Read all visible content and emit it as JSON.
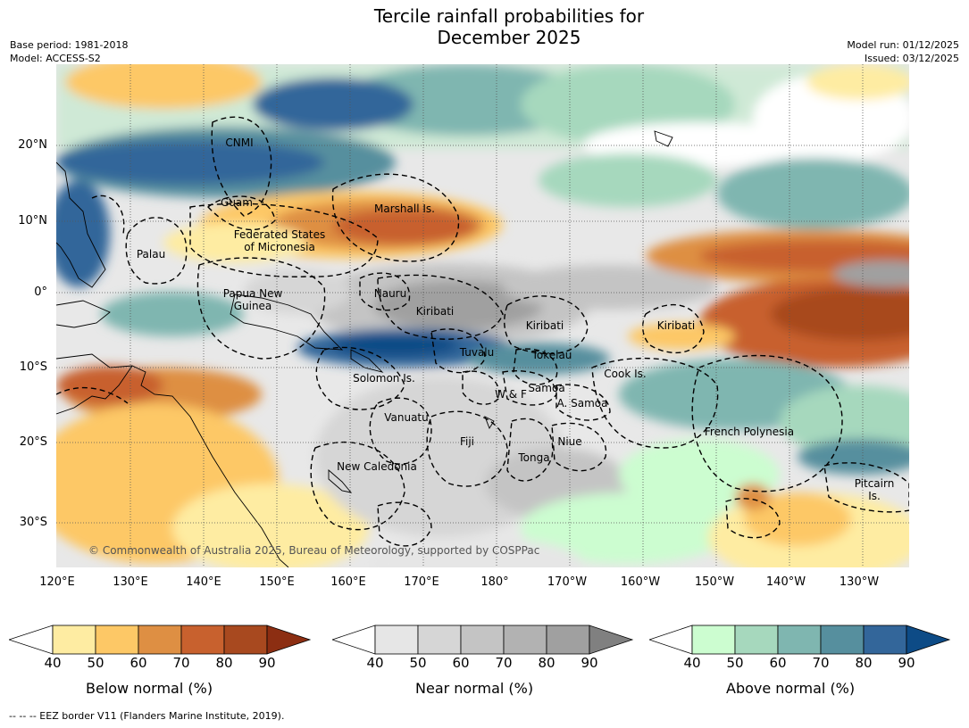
{
  "title_line1": "Tercile rainfall probabilities for",
  "title_line2": "December 2025",
  "meta": {
    "base_period": "Base period: 1981-2018",
    "model": "Model: ACCESS-S2",
    "model_run": "Model run: 01/12/2025",
    "issued": "Issued: 03/12/2025"
  },
  "lat_labels": [
    "20°N",
    "10°N",
    "0°",
    "10°S",
    "20°S",
    "30°S"
  ],
  "lon_labels": [
    "120°E",
    "130°E",
    "140°E",
    "150°E",
    "160°E",
    "170°E",
    "180°",
    "170°W",
    "160°W",
    "150°W",
    "140°W",
    "130°W"
  ],
  "regions": {
    "cnmi": "CNMI",
    "guam": "Guam",
    "palau": "Palau",
    "fsm_1": "Federated States",
    "fsm_2": "of Micronesia",
    "marshall": "Marshall Is.",
    "png_1": "Papua New",
    "png_2": "Guinea",
    "nauru": "Nauru",
    "kiribati_w": "Kiribati",
    "kiribati_c": "Kiribati",
    "kiribati_e": "Kiribati",
    "tuvalu": "Tuvalu",
    "tokelau": "Tokelau",
    "cook": "Cook Is.",
    "solomon": "Solomon Is.",
    "wf": "W & F",
    "samoa": "Samoa",
    "asamoa": "A. Samoa",
    "vanuatu": "Vanuatu",
    "fiji": "Fiji",
    "niue": "Niue",
    "tonga": "Tonga",
    "french_polynesia": "French Polynesia",
    "newcal": "New Caledonia",
    "pitcairn_1": "Pitcairn",
    "pitcairn_2": "Is."
  },
  "copyright": "© Commonwealth of Australia 2025, Bureau of Meteorology, supported by COSPPac",
  "colorbars": [
    {
      "label": "Below normal (%)",
      "ticks": [
        "40",
        "50",
        "60",
        "70",
        "80",
        "90"
      ],
      "colors": [
        "#ffffff",
        "#feeca2",
        "#fdc866",
        "#de8f43",
        "#c8612e",
        "#a8491f",
        "#8c2e12"
      ]
    },
    {
      "label": "Near normal (%)",
      "ticks": [
        "40",
        "50",
        "60",
        "70",
        "80",
        "90"
      ],
      "colors": [
        "#ffffff",
        "#e6e6e6",
        "#d6d6d6",
        "#c4c4c4",
        "#b2b2b2",
        "#a0a0a0",
        "#808080"
      ]
    },
    {
      "label": "Above normal (%)",
      "ticks": [
        "40",
        "50",
        "60",
        "70",
        "80",
        "90"
      ],
      "colors": [
        "#ffffff",
        "#ccfdd0",
        "#a6d8bd",
        "#7fb6b0",
        "#568f9e",
        "#33669a",
        "#0d4b86"
      ]
    }
  ],
  "footer": "-- -- -- EEZ border V11 (Flanders Marine Institute, 2019)."
}
